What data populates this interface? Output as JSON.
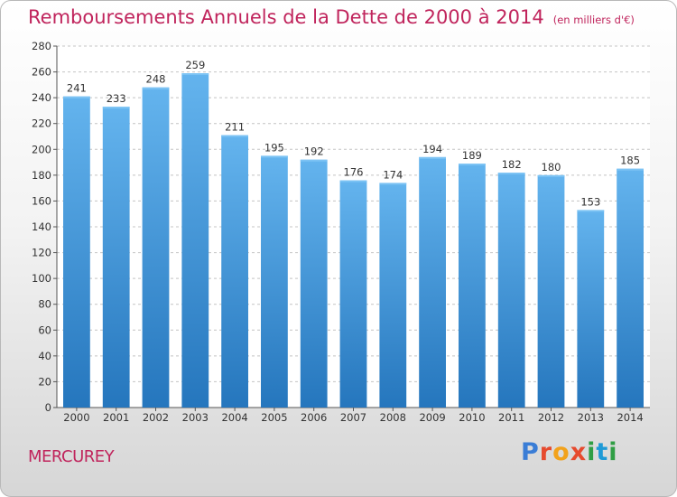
{
  "header": {
    "title": "Remboursements Annuels de la Dette de 2000 à 2014",
    "unit": "(en milliers d'€)"
  },
  "footer": {
    "town": "MERCUREY",
    "logo_text": "Proxiti"
  },
  "colors": {
    "title": "#c0245c",
    "bar_top": "#64b4ee",
    "bar_bottom": "#2576bd"
  },
  "chart_data": {
    "type": "bar",
    "title": "Remboursements Annuels de la Dette de 2000 à 2014",
    "xlabel": "",
    "ylabel": "",
    "categories": [
      "2000",
      "2001",
      "2002",
      "2003",
      "2004",
      "2005",
      "2006",
      "2007",
      "2008",
      "2009",
      "2010",
      "2011",
      "2012",
      "2013",
      "2014"
    ],
    "values": [
      241,
      233,
      248,
      259,
      211,
      195,
      192,
      176,
      174,
      194,
      189,
      182,
      180,
      153,
      185
    ],
    "ylim": [
      0,
      280
    ],
    "yticks": [
      0,
      20,
      40,
      60,
      80,
      100,
      120,
      140,
      160,
      180,
      200,
      220,
      240,
      260,
      280
    ],
    "grid": true,
    "data_labels": true
  }
}
